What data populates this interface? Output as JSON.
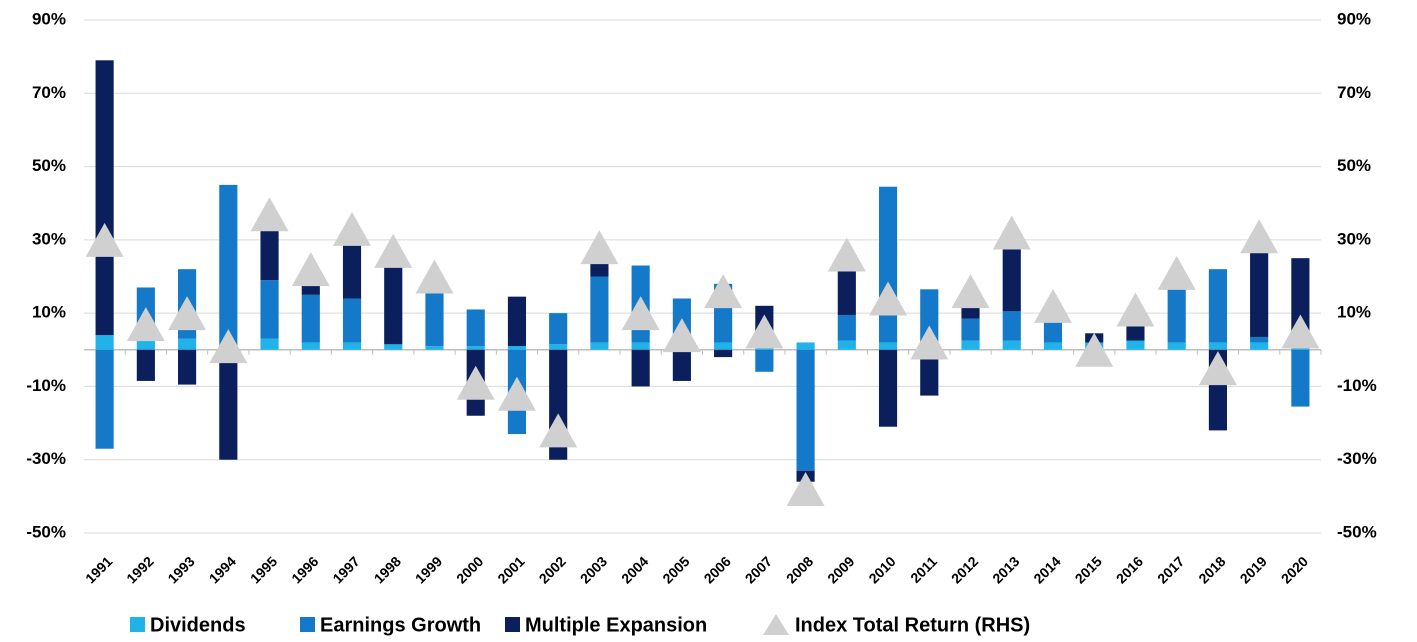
{
  "chart_data": {
    "type": "bar",
    "stacked": true,
    "categories": [
      "1991",
      "1992",
      "1993",
      "1994",
      "1995",
      "1996",
      "1997",
      "1998",
      "1999",
      "2000",
      "2001",
      "2002",
      "2003",
      "2004",
      "2005",
      "2006",
      "2007",
      "2008",
      "2009",
      "2010",
      "2011",
      "2012",
      "2013",
      "2014",
      "2015",
      "2016",
      "2017",
      "2018",
      "2019",
      "2020"
    ],
    "series": [
      {
        "name": "Dividends",
        "color": "#1fb3ea",
        "values": [
          4,
          3,
          3,
          0.5,
          3,
          2,
          2,
          1.5,
          1,
          1,
          1,
          1.5,
          2,
          2,
          1,
          2,
          1,
          2,
          2.5,
          2,
          2,
          2.5,
          2.5,
          2,
          2,
          2.5,
          2,
          2,
          2,
          1.5
        ]
      },
      {
        "name": "Earnings Growth",
        "color": "#1479c8",
        "values": [
          -27,
          14,
          19,
          44.5,
          16,
          13,
          12,
          0,
          15,
          10,
          -23,
          8.5,
          18,
          21,
          13,
          16,
          -6,
          -33,
          7,
          42.5,
          14.5,
          6,
          8,
          5.5,
          0,
          0,
          15.5,
          20,
          1.5,
          -15.5
        ]
      },
      {
        "name": "Multiple Expansion",
        "color": "#0b1f5c",
        "values": [
          75,
          -8.5,
          -9.5,
          -30,
          14.5,
          3.5,
          15,
          22.5,
          0.5,
          -18,
          13.5,
          -30,
          4,
          -10,
          -8.5,
          -2,
          11,
          -3,
          12.5,
          -21,
          -12.5,
          3,
          17.5,
          2,
          2.5,
          5,
          0,
          -22,
          24,
          23.5
        ]
      },
      {
        "name": "Index Total Return (RHS)",
        "color": "#d0d0d0",
        "axis": "y2",
        "marker": "triangle",
        "values": [
          30,
          7,
          10,
          1,
          37,
          22,
          33,
          27,
          20,
          -9,
          -12,
          -22,
          28,
          10,
          4,
          16,
          5,
          -38,
          26,
          14,
          2,
          16,
          32,
          12,
          0,
          11,
          21,
          -5,
          31,
          5
        ]
      }
    ],
    "ylim": [
      -50,
      90
    ],
    "yticks": [
      {
        "value": -50,
        "label": "-50%"
      },
      {
        "value": -30,
        "label": "-30%"
      },
      {
        "value": -10,
        "label": "-10%"
      },
      {
        "value": 10,
        "label": "10%"
      },
      {
        "value": 30,
        "label": "30%"
      },
      {
        "value": 50,
        "label": "50%"
      },
      {
        "value": 70,
        "label": "70%"
      },
      {
        "value": 90,
        "label": "90%"
      }
    ],
    "y2lim": [
      -50,
      90
    ],
    "y2ticks": [
      {
        "value": -50,
        "label": "-50%"
      },
      {
        "value": -30,
        "label": "-30%"
      },
      {
        "value": -10,
        "label": "-10%"
      },
      {
        "value": 10,
        "label": "10%"
      },
      {
        "value": 30,
        "label": "30%"
      },
      {
        "value": 50,
        "label": "50%"
      },
      {
        "value": 70,
        "label": "70%"
      },
      {
        "value": 90,
        "label": "90%"
      }
    ],
    "grid": true,
    "legend": "bottom"
  }
}
